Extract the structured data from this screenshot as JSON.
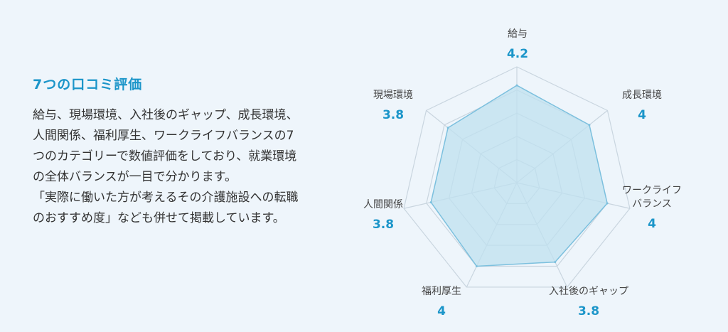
{
  "section": {
    "title": "7つの口コミ評価",
    "description_lines": [
      "給与、現場環境、入社後のギャップ、成長環境、",
      "人間関係、福利厚生、ワークライフバランスの7",
      "つのカテゴリーで数値評価をしており、就業環境",
      "の全体バランスが一目で分かります。",
      "「実際に働いた方が考えるその介護施設への転職",
      "のおすすめ度」なども併せて掲載しています。"
    ]
  },
  "colors": {
    "accent": "#1b95c9",
    "grid": "#c9d5df",
    "fill": "#bfe0ef",
    "stroke": "#7cc0de"
  },
  "chart_data": {
    "type": "radar",
    "title": "",
    "axes": [
      {
        "label_lines": [
          "給与"
        ],
        "value_label": "4.2",
        "value": 4.2
      },
      {
        "label_lines": [
          "成長環境"
        ],
        "value_label": "4",
        "value": 4
      },
      {
        "label_lines": [
          "ワークライフ",
          "バランス"
        ],
        "value_label": "4",
        "value": 4
      },
      {
        "label_lines": [
          "入社後のギャップ"
        ],
        "value_label": "3.8",
        "value": 3.8
      },
      {
        "label_lines": [
          "福利厚生"
        ],
        "value_label": "4",
        "value": 4
      },
      {
        "label_lines": [
          "人間関係"
        ],
        "value_label": "3.8",
        "value": 3.8
      },
      {
        "label_lines": [
          "現場環境"
        ],
        "value_label": "3.8",
        "value": 3.8
      }
    ],
    "rmax": 5,
    "grid_levels": 5,
    "grid": true
  }
}
